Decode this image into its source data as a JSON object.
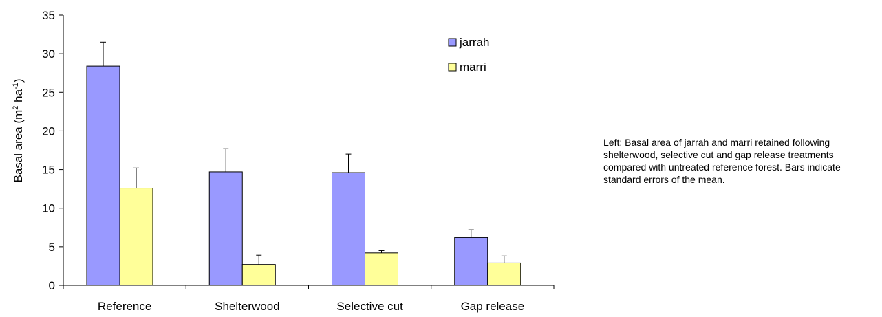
{
  "chart_data": {
    "type": "bar",
    "categories": [
      "Reference",
      "Shelterwood",
      "Selective cut",
      "Gap release"
    ],
    "series": [
      {
        "name": "jarrah",
        "color": "#9999ff",
        "values": [
          28.4,
          14.7,
          14.6,
          6.2
        ],
        "errors": [
          3.1,
          3.0,
          2.4,
          1.0
        ]
      },
      {
        "name": "marri",
        "color": "#ffff99",
        "values": [
          12.6,
          2.7,
          4.2,
          2.9
        ],
        "errors": [
          2.6,
          1.2,
          0.3,
          0.9
        ]
      }
    ],
    "ylabel": "Basal area (m² ha⁻¹)",
    "ylabel_parts": {
      "a": "Basal area (m",
      "sup1": "2",
      "b": " ha",
      "sup2": "-1",
      "c": ")"
    },
    "ylim": [
      0,
      35
    ],
    "yticks": [
      0,
      5,
      10,
      15,
      20,
      25,
      30,
      35
    ],
    "grid": false,
    "legend_position": "top-right"
  },
  "caption": "Left: Basal area of jarrah and marri retained following shelterwood, selective cut and gap release treatments compared with untreated reference forest. Bars indicate standard errors of the mean."
}
